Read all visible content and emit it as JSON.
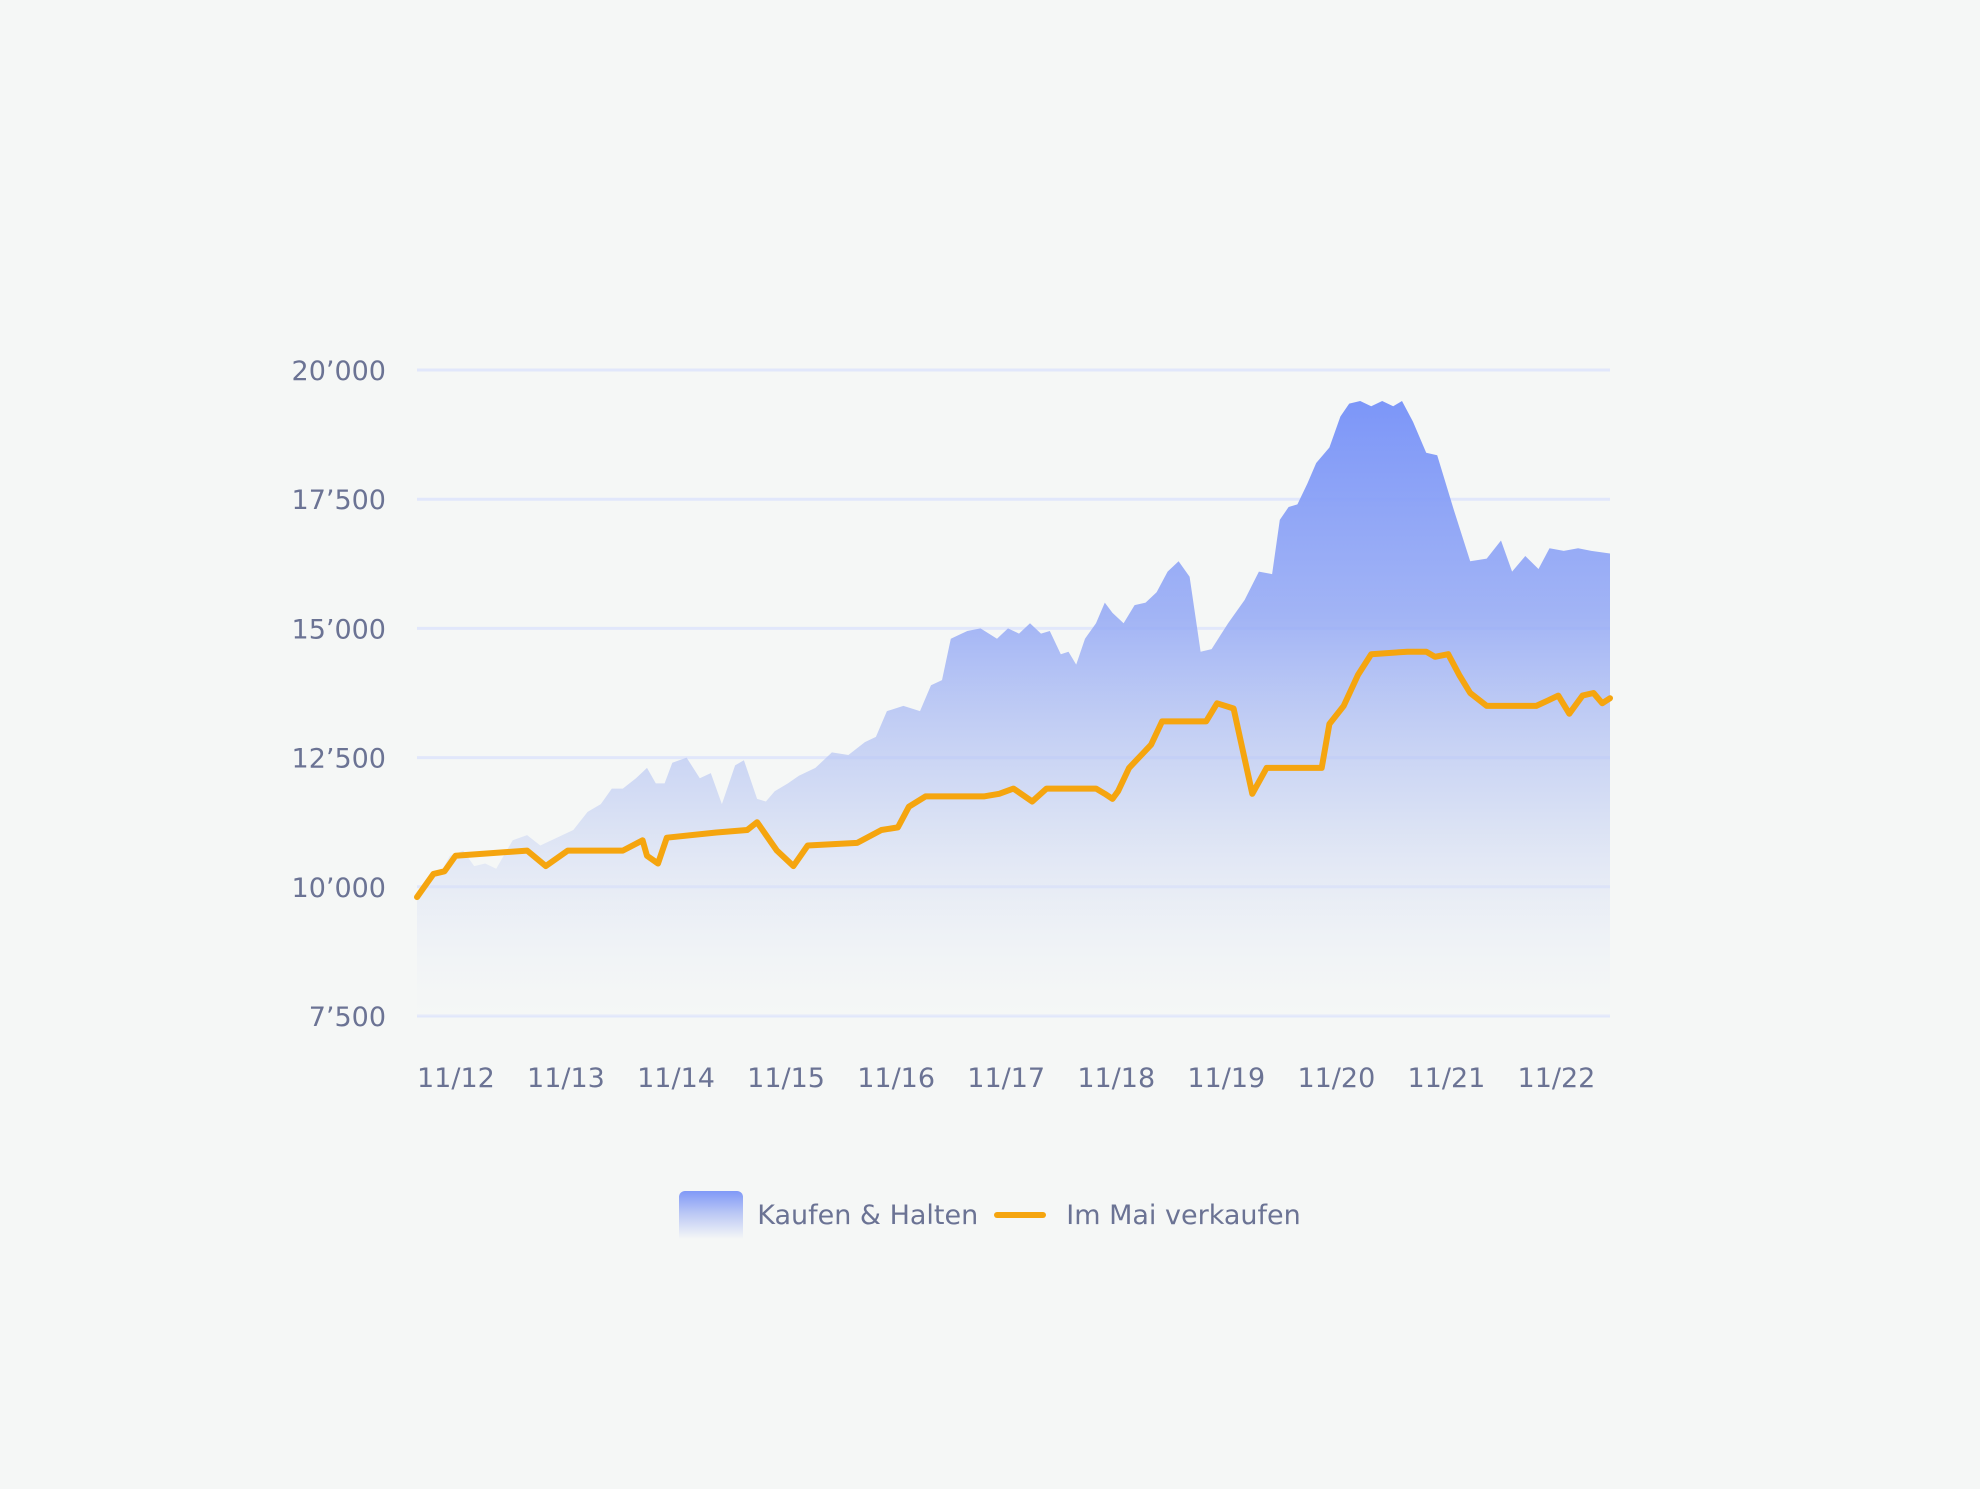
{
  "chart_data": {
    "type": "area",
    "title": "",
    "xlabel": "",
    "ylabel": "",
    "ylim": [
      7500,
      20000
    ],
    "yticks": [
      {
        "value": 7500,
        "label": "7’500"
      },
      {
        "value": 10000,
        "label": "10’000"
      },
      {
        "value": 12500,
        "label": "12’500"
      },
      {
        "value": 15000,
        "label": "15’000"
      },
      {
        "value": 17500,
        "label": "17’500"
      },
      {
        "value": 20000,
        "label": "20’000"
      }
    ],
    "xlim": [
      2012.83,
      2023.67
    ],
    "xticks": [
      {
        "value": 2012.83,
        "label": "11/12"
      },
      {
        "value": 2013.83,
        "label": "11/13"
      },
      {
        "value": 2014.83,
        "label": "11/14"
      },
      {
        "value": 2015.83,
        "label": "11/15"
      },
      {
        "value": 2016.83,
        "label": "11/16"
      },
      {
        "value": 2017.83,
        "label": "11/17"
      },
      {
        "value": 2018.83,
        "label": "11/18"
      },
      {
        "value": 2019.83,
        "label": "11/19"
      },
      {
        "value": 2020.83,
        "label": "11/20"
      },
      {
        "value": 2021.83,
        "label": "11/21"
      },
      {
        "value": 2022.83,
        "label": "11/22"
      }
    ],
    "grid": true,
    "legend_position": "bottom-center",
    "series": [
      {
        "name": "Kaufen & Halten",
        "kind": "area",
        "color": "#8099f7",
        "points": [
          [
            2012.83,
            9800
          ],
          [
            2012.95,
            10250
          ],
          [
            2013.05,
            10300
          ],
          [
            2013.13,
            10600
          ],
          [
            2013.25,
            10700
          ],
          [
            2013.35,
            10400
          ],
          [
            2013.45,
            10450
          ],
          [
            2013.55,
            10350
          ],
          [
            2013.7,
            10900
          ],
          [
            2013.83,
            11000
          ],
          [
            2013.95,
            10800
          ],
          [
            2014.1,
            10950
          ],
          [
            2014.25,
            11100
          ],
          [
            2014.38,
            11450
          ],
          [
            2014.5,
            11600
          ],
          [
            2014.6,
            11900
          ],
          [
            2014.7,
            11900
          ],
          [
            2014.82,
            12100
          ],
          [
            2014.92,
            12300
          ],
          [
            2015.0,
            12000
          ],
          [
            2015.08,
            12000
          ],
          [
            2015.15,
            12400
          ],
          [
            2015.28,
            12500
          ],
          [
            2015.4,
            12100
          ],
          [
            2015.5,
            12200
          ],
          [
            2015.6,
            11600
          ],
          [
            2015.72,
            12350
          ],
          [
            2015.8,
            12450
          ],
          [
            2015.92,
            11700
          ],
          [
            2016.0,
            11650
          ],
          [
            2016.08,
            11850
          ],
          [
            2016.2,
            12000
          ],
          [
            2016.3,
            12150
          ],
          [
            2016.45,
            12300
          ],
          [
            2016.6,
            12600
          ],
          [
            2016.75,
            12550
          ],
          [
            2016.9,
            12800
          ],
          [
            2017.0,
            12900
          ],
          [
            2017.1,
            13400
          ],
          [
            2017.25,
            13500
          ],
          [
            2017.4,
            13400
          ],
          [
            2017.5,
            13900
          ],
          [
            2017.6,
            14000
          ],
          [
            2017.68,
            14800
          ],
          [
            2017.83,
            14950
          ],
          [
            2017.95,
            15000
          ],
          [
            2018.1,
            14800
          ],
          [
            2018.2,
            15000
          ],
          [
            2018.3,
            14900
          ],
          [
            2018.4,
            15100
          ],
          [
            2018.5,
            14900
          ],
          [
            2018.58,
            14950
          ],
          [
            2018.68,
            14500
          ],
          [
            2018.75,
            14550
          ],
          [
            2018.82,
            14300
          ],
          [
            2018.9,
            14800
          ],
          [
            2019.0,
            15100
          ],
          [
            2019.08,
            15500
          ],
          [
            2019.15,
            15300
          ],
          [
            2019.25,
            15100
          ],
          [
            2019.35,
            15450
          ],
          [
            2019.45,
            15500
          ],
          [
            2019.55,
            15700
          ],
          [
            2019.65,
            16100
          ],
          [
            2019.75,
            16300
          ],
          [
            2019.85,
            16000
          ],
          [
            2019.95,
            14550
          ],
          [
            2020.05,
            14600
          ],
          [
            2020.2,
            15100
          ],
          [
            2020.35,
            15550
          ],
          [
            2020.48,
            16100
          ],
          [
            2020.6,
            16050
          ],
          [
            2020.67,
            17100
          ],
          [
            2020.75,
            17350
          ],
          [
            2020.83,
            17400
          ],
          [
            2020.92,
            17800
          ],
          [
            2021.0,
            18200
          ],
          [
            2021.12,
            18500
          ],
          [
            2021.22,
            19100
          ],
          [
            2021.3,
            19350
          ],
          [
            2021.4,
            19400
          ],
          [
            2021.5,
            19300
          ],
          [
            2021.6,
            19400
          ],
          [
            2021.7,
            19300
          ],
          [
            2021.78,
            19400
          ],
          [
            2021.88,
            19000
          ],
          [
            2022.0,
            18400
          ],
          [
            2022.1,
            18350
          ],
          [
            2022.25,
            17300
          ],
          [
            2022.4,
            16300
          ],
          [
            2022.55,
            16350
          ],
          [
            2022.68,
            16700
          ],
          [
            2022.78,
            16100
          ],
          [
            2022.9,
            16400
          ],
          [
            2023.02,
            16150
          ],
          [
            2023.12,
            16550
          ],
          [
            2023.25,
            16500
          ],
          [
            2023.38,
            16550
          ],
          [
            2023.5,
            16500
          ],
          [
            2023.67,
            16450
          ]
        ]
      },
      {
        "name": "Im Mai verkaufen",
        "kind": "line",
        "color": "#f5a50f",
        "points": [
          [
            2012.83,
            9800
          ],
          [
            2012.98,
            10250
          ],
          [
            2013.08,
            10300
          ],
          [
            2013.18,
            10600
          ],
          [
            2013.83,
            10700
          ],
          [
            2014.0,
            10400
          ],
          [
            2014.2,
            10700
          ],
          [
            2014.7,
            10700
          ],
          [
            2014.88,
            10900
          ],
          [
            2014.92,
            10600
          ],
          [
            2015.02,
            10450
          ],
          [
            2015.1,
            10950
          ],
          [
            2015.55,
            11050
          ],
          [
            2015.83,
            11100
          ],
          [
            2015.92,
            11250
          ],
          [
            2016.1,
            10700
          ],
          [
            2016.25,
            10400
          ],
          [
            2016.38,
            10800
          ],
          [
            2016.83,
            10850
          ],
          [
            2017.05,
            11100
          ],
          [
            2017.2,
            11150
          ],
          [
            2017.3,
            11550
          ],
          [
            2017.45,
            11750
          ],
          [
            2017.83,
            11750
          ],
          [
            2017.98,
            11750
          ],
          [
            2018.12,
            11800
          ],
          [
            2018.25,
            11900
          ],
          [
            2018.42,
            11650
          ],
          [
            2018.55,
            11900
          ],
          [
            2018.83,
            11900
          ],
          [
            2019.0,
            11900
          ],
          [
            2019.08,
            11800
          ],
          [
            2019.15,
            11700
          ],
          [
            2019.2,
            11850
          ],
          [
            2019.3,
            12300
          ],
          [
            2019.5,
            12750
          ],
          [
            2019.6,
            13200
          ],
          [
            2019.83,
            13200
          ],
          [
            2020.0,
            13200
          ],
          [
            2020.1,
            13550
          ],
          [
            2020.25,
            13450
          ],
          [
            2020.42,
            11800
          ],
          [
            2020.55,
            12300
          ],
          [
            2020.83,
            12300
          ],
          [
            2021.05,
            12300
          ],
          [
            2021.12,
            13150
          ],
          [
            2021.25,
            13500
          ],
          [
            2021.38,
            14100
          ],
          [
            2021.5,
            14500
          ],
          [
            2021.83,
            14550
          ],
          [
            2022.0,
            14550
          ],
          [
            2022.08,
            14450
          ],
          [
            2022.2,
            14500
          ],
          [
            2022.3,
            14100
          ],
          [
            2022.4,
            13750
          ],
          [
            2022.55,
            13500
          ],
          [
            2022.83,
            13500
          ],
          [
            2023.0,
            13500
          ],
          [
            2023.1,
            13600
          ],
          [
            2023.2,
            13700
          ],
          [
            2023.3,
            13350
          ],
          [
            2023.42,
            13700
          ],
          [
            2023.52,
            13750
          ],
          [
            2023.6,
            13550
          ],
          [
            2023.67,
            13650
          ]
        ]
      }
    ]
  }
}
